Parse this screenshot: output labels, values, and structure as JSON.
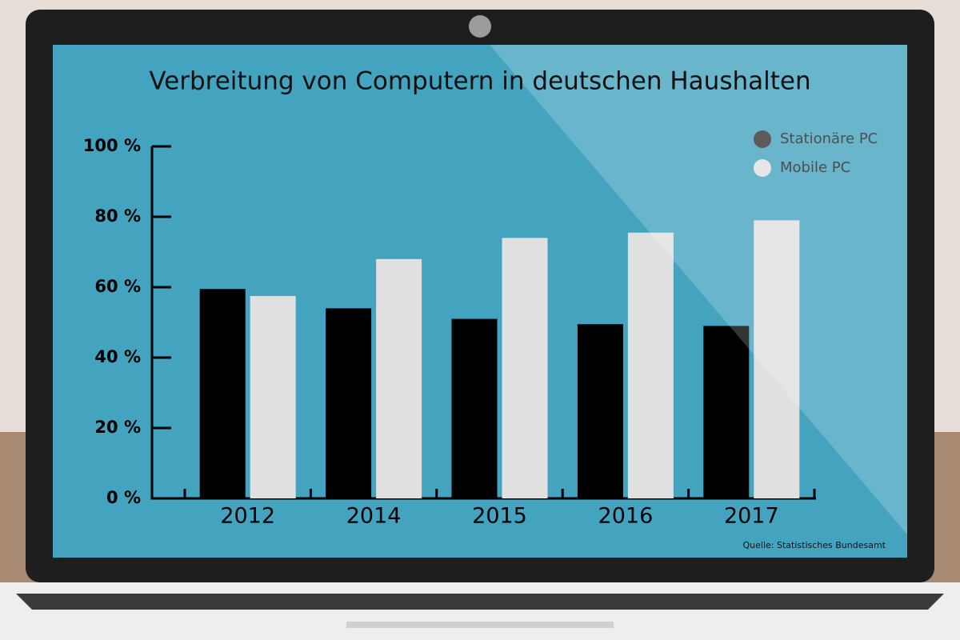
{
  "chart_data": {
    "type": "bar",
    "title": "Verbreitung von Computern in deutschen Haushalten",
    "categories": [
      "2012",
      "2014",
      "2015",
      "2016",
      "2017"
    ],
    "series": [
      {
        "name": "Stationäre PC",
        "color": "#000000",
        "values": [
          59.5,
          54,
          51,
          49.5,
          49
        ]
      },
      {
        "name": "Mobile PC",
        "color": "#e0e0e0",
        "values": [
          57.5,
          68,
          74,
          75.5,
          79
        ]
      }
    ],
    "ylim": [
      0,
      100
    ],
    "yticks": [
      {
        "value": 0,
        "label": "0 %"
      },
      {
        "value": 20,
        "label": "20 %"
      },
      {
        "value": 40,
        "label": "40 %"
      },
      {
        "value": 60,
        "label": "60 %"
      },
      {
        "value": 80,
        "label": "80 %"
      },
      {
        "value": 100,
        "label": "100 %"
      }
    ],
    "legend": "top-right",
    "source": "Quelle: Statistisches Bundesamt"
  }
}
